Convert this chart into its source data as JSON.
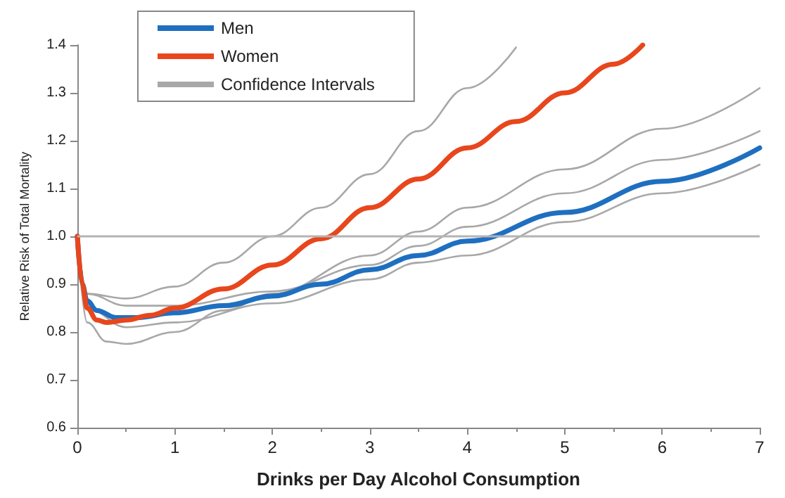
{
  "chart_data": {
    "type": "line",
    "xlabel": "Drinks per Day Alcohol Consumption",
    "ylabel": "Relative Risk of Total Mortality",
    "xlim": [
      0,
      7
    ],
    "xticks": [
      0,
      1,
      2,
      3,
      4,
      5,
      6,
      7
    ],
    "ylim": [
      0.6,
      1.4
    ],
    "yticks": [
      0.6,
      0.7,
      0.8,
      0.9,
      {
        "value": 1,
        "label": "1.0"
      },
      1.1,
      1.2,
      1.3,
      1.4
    ],
    "grid": false,
    "legend": "top left",
    "marker": "none",
    "ref_lines": [
      {
        "axis": "y",
        "value": 1.0,
        "color": "#b4b4b4"
      }
    ],
    "series": [
      {
        "name": "Men",
        "color": "#1f6fc0",
        "x": [
          0,
          0.05,
          0.1,
          0.2,
          0.4,
          0.6,
          1,
          1.5,
          2,
          2.5,
          3,
          3.5,
          4,
          5,
          6,
          7
        ],
        "values": [
          1.0,
          0.9,
          0.865,
          0.845,
          0.83,
          0.83,
          0.84,
          0.855,
          0.875,
          0.9,
          0.93,
          0.96,
          0.99,
          1.05,
          1.115,
          1.185
        ]
      },
      {
        "name": "Women",
        "color": "#e8461c",
        "x": [
          0,
          0.05,
          0.1,
          0.2,
          0.3,
          0.5,
          0.75,
          1,
          1.5,
          2,
          2.5,
          3,
          3.5,
          4,
          4.5,
          5,
          5.5,
          5.8
        ],
        "values": [
          1.0,
          0.9,
          0.85,
          0.825,
          0.82,
          0.825,
          0.835,
          0.85,
          0.89,
          0.94,
          0.995,
          1.06,
          1.12,
          1.185,
          1.24,
          1.3,
          1.36,
          1.4
        ]
      },
      {
        "name": "Confidence Intervals",
        "color": "#a8a8a8",
        "x": [
          0,
          0.1,
          0.5,
          1,
          1.5,
          2,
          2.5,
          3,
          3.5,
          4,
          4.5
        ],
        "values": [
          1.0,
          0.88,
          0.87,
          0.895,
          0.945,
          1.0,
          1.06,
          1.13,
          1.22,
          1.31,
          1.395
        ]
      },
      {
        "color": "#a8a8a8",
        "x": [
          0,
          0.1,
          0.3,
          0.5,
          1,
          1.5,
          2,
          3,
          3.5,
          4,
          5,
          6,
          7
        ],
        "values": [
          1.0,
          0.82,
          0.78,
          0.775,
          0.8,
          0.845,
          0.88,
          0.96,
          1.01,
          1.06,
          1.14,
          1.225,
          1.31
        ]
      },
      {
        "color": "#a8a8a8",
        "x": [
          0,
          0.1,
          0.5,
          1,
          2,
          3,
          3.5,
          4,
          5,
          6,
          7
        ],
        "values": [
          1.0,
          0.88,
          0.855,
          0.855,
          0.885,
          0.94,
          0.98,
          1.02,
          1.09,
          1.16,
          1.22
        ]
      },
      {
        "color": "#a8a8a8",
        "x": [
          0,
          0.1,
          0.5,
          1,
          2,
          3,
          3.5,
          4,
          5,
          6,
          7
        ],
        "values": [
          1.0,
          0.85,
          0.81,
          0.82,
          0.86,
          0.91,
          0.945,
          0.96,
          1.03,
          1.09,
          1.15
        ]
      }
    ]
  }
}
